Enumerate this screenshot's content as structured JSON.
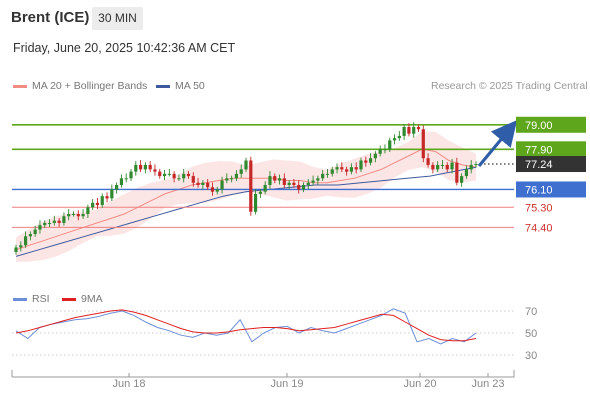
{
  "header": {
    "instrument": "Brent (ICE)",
    "timeframe": "30 MIN",
    "datetime": "Friday, June 20, 2025 10:42:36 AM CET"
  },
  "legend": {
    "bollinger": "MA 20 + Bollinger Bands",
    "ma50": "MA 50",
    "credit": "Research © 2025 Trading Central",
    "rsi": "RSI",
    "rsi_ma": "9MA"
  },
  "colors": {
    "bollinger": "#f28b82",
    "ma50": "#3d5a9e",
    "resistance": "#5ea61b",
    "support_blue": "#3f6fcf",
    "support_red": "#f08080",
    "last_price": "#333333",
    "candle_up": "#2f8a2f",
    "candle_down": "#c62828",
    "arrow": "#2f5da8"
  },
  "chart_data": [
    {
      "type": "candlestick",
      "title": "Brent (ICE)",
      "x_ticks": [
        "Jun 18",
        "Jun 19",
        "Jun 20",
        "Jun 23"
      ],
      "levels": [
        {
          "value": 79.0,
          "label": "79.00",
          "kind": "resistance"
        },
        {
          "value": 77.9,
          "label": "77.90",
          "kind": "resistance"
        },
        {
          "value": 77.24,
          "label": "77.24",
          "kind": "last"
        },
        {
          "value": 76.1,
          "label": "76.10",
          "kind": "pivot"
        },
        {
          "value": 75.3,
          "label": "75.30",
          "kind": "support"
        },
        {
          "value": 74.4,
          "label": "74.40",
          "kind": "support"
        }
      ],
      "ylim": [
        72.4,
        80.2
      ],
      "close": [
        73.5,
        73.6,
        74.0,
        74.1,
        74.3,
        74.5,
        74.6,
        74.6,
        74.7,
        74.6,
        74.9,
        75.0,
        75.0,
        74.9,
        75.0,
        75.3,
        75.5,
        75.4,
        75.8,
        75.7,
        76.1,
        76.3,
        76.6,
        76.6,
        76.9,
        77.2,
        77.0,
        77.2,
        77.0,
        76.9,
        76.7,
        76.8,
        76.8,
        76.6,
        76.6,
        76.8,
        76.7,
        76.4,
        76.3,
        76.4,
        76.2,
        76.0,
        76.1,
        76.5,
        76.6,
        76.6,
        76.8,
        77.0,
        77.4,
        75.1,
        75.9,
        76.0,
        76.3,
        76.7,
        76.5,
        76.6,
        76.3,
        76.4,
        76.3,
        76.1,
        76.3,
        76.4,
        76.5,
        76.6,
        76.8,
        76.8,
        77.0,
        77.1,
        77.0,
        76.9,
        77.1,
        77.0,
        77.4,
        77.3,
        77.5,
        77.7,
        77.9,
        77.9,
        78.3,
        78.4,
        78.5,
        78.9,
        78.6,
        78.9,
        78.8,
        77.5,
        77.2,
        77.0,
        77.2,
        77.2,
        77.0,
        77.3,
        76.4,
        76.7,
        77.0,
        77.2,
        77.24
      ],
      "bollinger_ma20": [
        73.4,
        73.6,
        73.8,
        74.0,
        74.2,
        74.4,
        74.6,
        74.8,
        75.0,
        75.3,
        75.6,
        75.9,
        76.1,
        76.3,
        76.4,
        76.5,
        76.6,
        76.6,
        76.6,
        76.6,
        76.5,
        76.5,
        76.4,
        76.4,
        76.5,
        76.6,
        76.8,
        77.0,
        77.3,
        77.6,
        77.9,
        77.8,
        77.4,
        77.2,
        77.1
      ],
      "ma50": [
        73.1,
        73.4,
        73.7,
        74.0,
        74.3,
        74.6,
        74.9,
        75.2,
        75.5,
        75.8,
        76.0,
        76.1,
        76.2,
        76.3,
        76.3,
        76.4,
        76.5,
        76.6,
        76.7,
        76.9,
        77.1
      ],
      "rsi_ylim": [
        20,
        80
      ],
      "rsi_ticks": [
        "70",
        "50",
        "30"
      ],
      "rsi": [
        52,
        45,
        55,
        58,
        60,
        62,
        63,
        65,
        68,
        70,
        66,
        60,
        55,
        52,
        48,
        46,
        50,
        48,
        50,
        62,
        42,
        50,
        55,
        56,
        50,
        55,
        52,
        50,
        54,
        58,
        62,
        66,
        72,
        68,
        42,
        45,
        40,
        45,
        42,
        50
      ],
      "rsi_ma": [
        50,
        52,
        55,
        58,
        61,
        64,
        66,
        68,
        70,
        71,
        69,
        66,
        62,
        58,
        54,
        51,
        50,
        50,
        51,
        53,
        54,
        55,
        55,
        54,
        52,
        53,
        54,
        55,
        58,
        61,
        64,
        67,
        66,
        60,
        54,
        48,
        44,
        43,
        43,
        45
      ]
    }
  ]
}
